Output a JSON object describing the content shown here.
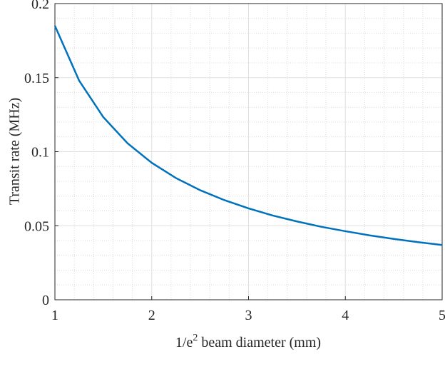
{
  "chart_data": {
    "type": "line",
    "ylabel": "Transit rate (MHz)",
    "xlabel_parts": [
      "1/e",
      "2",
      " beam diameter (mm)"
    ],
    "x": [
      1,
      1.25,
      1.5,
      1.75,
      2,
      2.25,
      2.5,
      2.75,
      3,
      3.25,
      3.5,
      3.75,
      4,
      4.25,
      4.5,
      4.75,
      5
    ],
    "series": [
      {
        "color": "#0072bd",
        "values": [
          0.185,
          0.148,
          0.1233,
          0.1057,
          0.0925,
          0.0822,
          0.074,
          0.0673,
          0.0617,
          0.0569,
          0.0529,
          0.0493,
          0.0463,
          0.0435,
          0.0411,
          0.0389,
          0.037
        ]
      }
    ],
    "xlim": [
      1,
      5
    ],
    "ylim": [
      0,
      0.2
    ],
    "xticks": [
      1,
      2,
      3,
      4,
      5
    ],
    "yticks": [
      0,
      0.05,
      0.1,
      0.15,
      0.2
    ],
    "grid": true,
    "minor_grid": true
  }
}
